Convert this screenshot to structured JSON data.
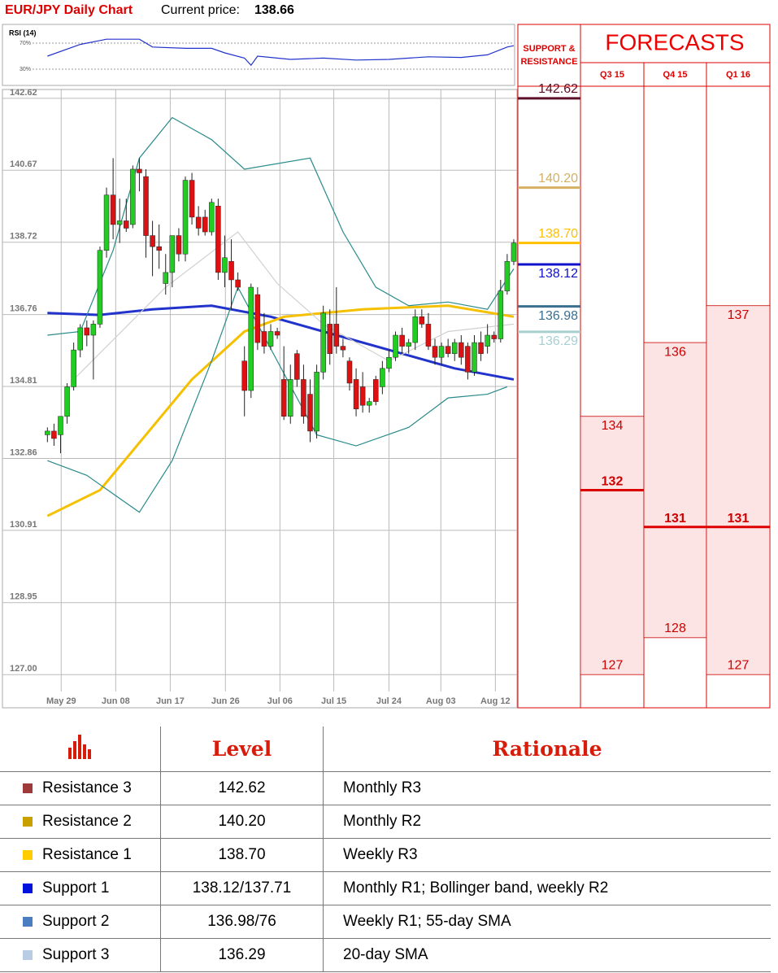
{
  "header": {
    "title": "EUR/JPY Daily Chart",
    "price_label": "Current price:",
    "price": "138.66"
  },
  "chart_data": [
    {
      "type": "line",
      "title": "RSI (14)",
      "color": "#2233cc",
      "x": [
        0,
        5,
        9,
        14,
        16,
        21,
        25,
        27,
        30,
        31,
        32,
        37,
        42,
        47,
        52,
        58,
        63,
        67,
        70,
        71
      ],
      "values": [
        50,
        68,
        76,
        76,
        64,
        62,
        62,
        55,
        47,
        36,
        50,
        45,
        47,
        44,
        45,
        49,
        48,
        52,
        64,
        66
      ],
      "xlim": [
        -6.6,
        71.5
      ],
      "ylim": [
        10,
        90
      ],
      "yticks": [
        {
          "value": 70,
          "label": "70%"
        },
        {
          "value": 30,
          "label": "30%"
        }
      ]
    },
    {
      "type": "candlestick",
      "up_color": "#22cc22",
      "down_color": "#dd1111",
      "open": [
        133.5,
        133.6,
        133.5,
        134.0,
        134.8,
        135.8,
        136.4,
        136.2,
        136.5,
        138.5,
        140.0,
        139.2,
        139.3,
        139.2,
        140.7,
        140.5,
        138.9,
        138.6,
        137.6,
        137.9,
        138.9,
        138.4,
        140.4,
        139.4,
        139.4,
        139.0,
        139.7,
        137.9,
        138.2,
        137.7,
        135.5,
        134.7,
        137.3,
        136.3,
        135.9,
        136.3,
        135.0,
        134.0,
        135.7,
        135.0,
        134.6,
        133.6,
        135.2,
        136.5,
        136.5,
        135.9,
        135.5,
        135.0,
        134.8,
        134.3,
        135.0,
        134.8,
        135.3,
        135.6,
        136.2,
        135.9,
        136.0,
        136.7,
        136.5,
        135.9,
        135.6,
        135.9,
        135.7,
        136.0,
        135.9,
        135.2,
        136.0,
        135.9,
        136.2,
        136.1,
        137.4,
        138.2
      ],
      "high": [
        133.7,
        133.8,
        134.0,
        134.9,
        136.0,
        136.5,
        136.6,
        136.6,
        138.6,
        140.2,
        141.0,
        139.9,
        139.9,
        140.8,
        141.0,
        140.7,
        139.3,
        139.2,
        138.4,
        138.8,
        139.1,
        140.5,
        140.6,
        139.7,
        139.6,
        139.9,
        139.9,
        138.9,
        138.8,
        137.9,
        135.9,
        137.6,
        137.5,
        136.8,
        136.5,
        136.4,
        135.9,
        135.4,
        135.8,
        135.4,
        135.0,
        135.4,
        137.0,
        136.9,
        137.5,
        136.1,
        135.6,
        135.3,
        135.2,
        134.5,
        135.1,
        135.5,
        135.8,
        136.3,
        136.4,
        136.1,
        136.9,
        136.9,
        136.8,
        136.1,
        136.0,
        136.1,
        136.1,
        136.2,
        136.0,
        136.2,
        136.3,
        136.5,
        136.3,
        137.7,
        138.4,
        138.8
      ],
      "low": [
        133.3,
        133.2,
        133.0,
        133.8,
        134.7,
        135.6,
        135.9,
        135.0,
        136.4,
        138.3,
        138.8,
        138.7,
        139.0,
        139.1,
        140.1,
        138.3,
        137.8,
        138.0,
        137.3,
        137.5,
        138.2,
        138.2,
        139.2,
        138.9,
        138.9,
        138.9,
        137.7,
        137.5,
        136.9,
        137.4,
        134.0,
        134.5,
        135.8,
        135.7,
        135.8,
        136.1,
        133.9,
        133.8,
        134.8,
        133.8,
        133.3,
        133.4,
        135.0,
        135.4,
        135.7,
        135.6,
        134.7,
        134.0,
        134.1,
        134.1,
        134.3,
        134.6,
        135.2,
        135.5,
        135.7,
        135.7,
        135.8,
        136.4,
        135.8,
        135.4,
        135.4,
        135.6,
        135.5,
        135.4,
        135.0,
        135.1,
        135.5,
        135.7,
        136.0,
        136.0,
        137.3,
        138.1
      ],
      "close": [
        133.6,
        133.4,
        134.0,
        134.8,
        135.8,
        136.4,
        136.2,
        136.5,
        138.5,
        140.0,
        139.2,
        139.3,
        139.1,
        140.7,
        140.6,
        138.9,
        138.6,
        138.5,
        137.9,
        138.9,
        138.4,
        140.4,
        139.4,
        139.1,
        139.0,
        139.8,
        137.9,
        138.3,
        137.7,
        137.5,
        134.7,
        137.5,
        136.0,
        135.9,
        136.3,
        136.2,
        134.0,
        135.0,
        135.0,
        134.0,
        133.6,
        135.2,
        136.8,
        135.7,
        135.9,
        135.8,
        134.9,
        134.2,
        134.3,
        134.4,
        134.4,
        135.3,
        135.6,
        136.2,
        135.9,
        136.0,
        136.7,
        136.5,
        135.9,
        135.6,
        135.9,
        135.7,
        136.0,
        135.6,
        135.2,
        136.0,
        135.7,
        136.2,
        136.1,
        137.4,
        138.2,
        138.7
      ],
      "lines": [
        {
          "color": "#2233cc",
          "x": [
            0,
            8,
            16,
            25,
            34,
            44,
            54,
            62,
            71
          ],
          "values": [
            136.8,
            136.75,
            136.9,
            137.0,
            136.7,
            136.2,
            135.7,
            135.3,
            135.0
          ]
        },
        {
          "color": "#f5c000",
          "x": [
            0,
            8,
            15,
            22,
            30,
            36,
            48,
            61,
            71
          ],
          "values": [
            131.3,
            132.0,
            133.5,
            135.0,
            136.3,
            136.7,
            136.9,
            137.0,
            136.7
          ]
        },
        {
          "color": "#2a8a8a",
          "x": [
            0,
            5,
            10,
            14,
            19,
            25,
            30,
            40,
            45,
            50,
            55,
            61,
            67,
            71
          ],
          "values": [
            136.2,
            136.3,
            138.5,
            141.0,
            142.1,
            141.5,
            140.7,
            141.0,
            139.0,
            137.5,
            137.0,
            137.1,
            136.9,
            138.0
          ]
        },
        {
          "color": "#2a8a8a",
          "x": [
            0,
            6,
            14,
            19,
            25,
            29,
            35,
            41,
            47,
            55,
            61,
            67,
            70
          ],
          "values": [
            132.8,
            132.4,
            131.4,
            132.8,
            135.5,
            137.5,
            135.5,
            133.5,
            133.2,
            133.7,
            134.5,
            134.6,
            134.8
          ]
        },
        {
          "color": "#d0d0d0",
          "x": [
            4,
            18,
            29,
            35,
            42,
            52,
            61,
            71
          ],
          "values": [
            135.0,
            137.5,
            139.0,
            137.6,
            136.5,
            135.5,
            136.3,
            136.5
          ]
        }
      ],
      "xlim": [
        -6.6,
        71.5
      ],
      "ylim": [
        126.1,
        142.86
      ],
      "yticks": [
        142.62,
        140.67,
        138.72,
        136.76,
        134.81,
        132.86,
        130.91,
        128.95,
        {
          "value": 127,
          "label": "127.00"
        }
      ],
      "xticks": [
        {
          "value": 2.1,
          "label": "May 29"
        },
        {
          "value": 10.4,
          "label": "Jun 08"
        },
        {
          "value": 18.7,
          "label": "Jun 17"
        },
        {
          "value": 27.1,
          "label": "Jun 26"
        },
        {
          "value": 35.4,
          "label": "Jul 06"
        },
        {
          "value": 43.6,
          "label": "Jul 15"
        },
        {
          "value": 52,
          "label": "Jul 24"
        },
        {
          "value": 59.9,
          "label": "Aug 03"
        },
        {
          "value": 68.2,
          "label": "Aug 12"
        }
      ]
    },
    {
      "type": "levels",
      "title": "SUPPORT & RESISTANCE",
      "values": [
        142.62,
        140.2,
        138.7,
        138.12,
        136.98,
        136.29
      ],
      "value_labels": [
        "142.62",
        "140.20",
        "138.70",
        "138.12",
        "136.98",
        "136.29"
      ],
      "colors": [
        "#5c0f2a",
        "#d4b060",
        "#ffc000",
        "#1010cc",
        "#3a6f8f",
        "#a8cfd0"
      ],
      "ylim": [
        126.1,
        142.86
      ]
    },
    {
      "type": "forecast",
      "title": "FORECASTS",
      "categories": [
        "Q3 15",
        "Q4 15",
        "Q1 16"
      ],
      "high": [
        134,
        136,
        137
      ],
      "mid": [
        132,
        131,
        131
      ],
      "low": [
        127,
        128,
        127
      ],
      "ylim": [
        126.1,
        142.86
      ]
    }
  ],
  "table": {
    "header": [
      "Level",
      "Rationale"
    ],
    "rows": [
      {
        "name": "Resistance 3",
        "color": "#9e3a3a",
        "level": "142.62",
        "rationale": "Monthly R3"
      },
      {
        "name": "Resistance 2",
        "color": "#c8a000",
        "level": "140.20",
        "rationale": "Monthly R2"
      },
      {
        "name": "Resistance 1",
        "color": "#ffcc00",
        "level": "138.70",
        "rationale": "Weekly R3"
      },
      {
        "name": "Support 1",
        "color": "#0010dd",
        "level": "138.12/137.71",
        "rationale": "Monthly R1; Bollinger band, weekly R2"
      },
      {
        "name": "Support 2",
        "color": "#4a7ec0",
        "level": "136.98/76",
        "rationale": "Weekly R1; 55-day SMA"
      },
      {
        "name": "Support 3",
        "color": "#b8cce4",
        "level": "136.29",
        "rationale": "20-day SMA"
      }
    ]
  }
}
